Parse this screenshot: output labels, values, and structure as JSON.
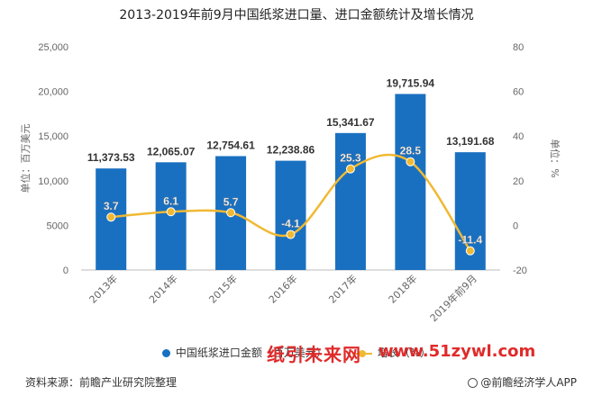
{
  "title": "2013-2019年前9月中国纸浆进口量、进口金额统计及增长情况",
  "legend": {
    "bar_label": "中国纸浆进口金额（百万美元）",
    "line_label": "增长（%）"
  },
  "footer": {
    "source": "资料来源：前瞻产业研究院整理",
    "brand": "@前瞻经济学人APP"
  },
  "overlay": {
    "watermark_text": "纸引未来网",
    "watermark_url": "www.51zywl.com"
  },
  "colors": {
    "bar": "#1a70c0",
    "line": "#f0b933",
    "axis_text": "#666666",
    "grid": "#dddddd"
  },
  "chart_data": {
    "type": "bar",
    "categories": [
      "2013年",
      "2014年",
      "2015年",
      "2016年",
      "2017年",
      "2018年",
      "2019年前9月"
    ],
    "series": [
      {
        "name": "中国纸浆进口金额（百万美元）",
        "type": "bar",
        "axis": "left",
        "values": [
          11373.53,
          12065.07,
          12754.61,
          12238.86,
          15341.67,
          19715.94,
          13191.68
        ],
        "labels": [
          "11,373.53",
          "12,065.07",
          "12,754.61",
          "12,238.86",
          "15,341.67",
          "19,715.94",
          "13,191.68"
        ]
      },
      {
        "name": "增长（%）",
        "type": "line",
        "axis": "right",
        "values": [
          3.7,
          6.1,
          5.7,
          -4.1,
          25.3,
          28.5,
          -11.4
        ],
        "labels": [
          "3.7",
          "6.1",
          "5.7",
          "-4.1",
          "25.3",
          "28.5",
          "-11.4"
        ]
      }
    ],
    "y_left": {
      "label": "单位：百万美元",
      "lim": [
        0,
        25000
      ],
      "ticks": [
        0,
        5000,
        10000,
        15000,
        20000,
        25000
      ],
      "tick_labels": [
        "0",
        "5000",
        "10,000",
        "15,000",
        "20,000",
        "25,000"
      ]
    },
    "y_right": {
      "label": "单位：%",
      "lim": [
        -20,
        80
      ],
      "ticks": [
        -20,
        0,
        20,
        40,
        60,
        80
      ],
      "tick_labels": [
        "-20",
        "0",
        "20",
        "40",
        "60",
        "80"
      ]
    },
    "legend_position": "bottom",
    "grid": false
  }
}
